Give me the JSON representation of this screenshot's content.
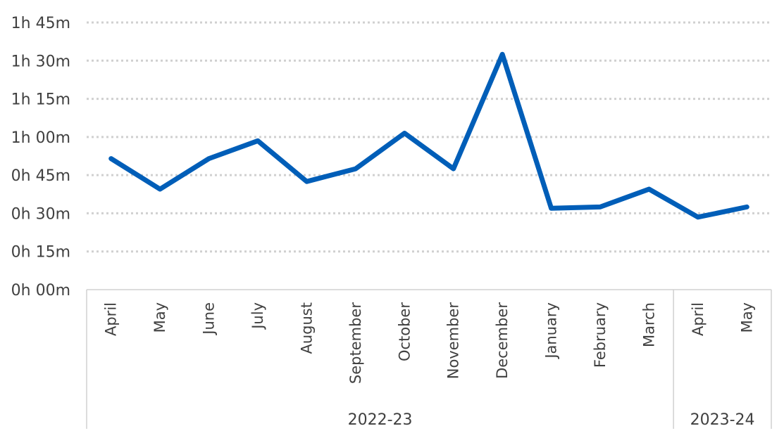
{
  "chart_data": {
    "type": "line",
    "title": "",
    "xlabel": "",
    "ylabel": "",
    "y_unit": "minutes",
    "ylim": [
      0,
      105
    ],
    "y_ticks": [
      0,
      15,
      30,
      45,
      60,
      75,
      90,
      105
    ],
    "y_tick_labels": [
      "0h 00m",
      "0h 15m",
      "0h 30m",
      "0h 45m",
      "1h 00m",
      "1h 15m",
      "1h 30m",
      "1h 45m"
    ],
    "grid": "horizontal dotted",
    "categories": [
      "April",
      "May",
      "June",
      "July",
      "August",
      "September",
      "October",
      "November",
      "December",
      "January",
      "February",
      "March",
      "April",
      "May"
    ],
    "groups": [
      {
        "label": "2022-23",
        "count": 12
      },
      {
        "label": "2023-24",
        "count": 2
      }
    ],
    "series": [
      {
        "values": [
          51.5,
          39.5,
          51.5,
          58.5,
          42.5,
          47.5,
          61.5,
          47.5,
          92.5,
          32.0,
          32.5,
          39.5,
          28.5,
          32.5
        ]
      }
    ],
    "colors": {
      "line": "#005EB8",
      "grid": "#D0D0D0",
      "axis": "#D0D0D0",
      "text": "#404040"
    }
  }
}
